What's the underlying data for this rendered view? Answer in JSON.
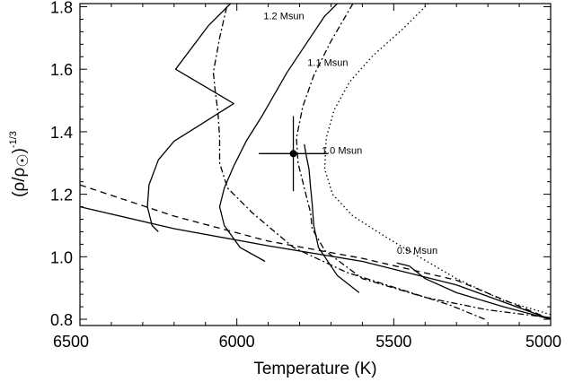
{
  "chart_data": {
    "type": "line",
    "xlabel": "Temperature (K)",
    "ylabel_main": "(ρ/ρ",
    "ylabel_close": ")",
    "ylabel_exp": "-1/3",
    "xlim": [
      6500,
      5000
    ],
    "ylim": [
      0.78,
      1.81
    ],
    "xticks": [
      6500,
      6000,
      5500,
      5000
    ],
    "xtick_labels": [
      "6500",
      "6000",
      "5500",
      "5000"
    ],
    "yticks": [
      0.8,
      1.0,
      1.2,
      1.4,
      1.6,
      1.8
    ],
    "ytick_labels": [
      "0.8",
      "1.0",
      "1.2",
      "1.4",
      "1.6",
      "1.8"
    ],
    "grid": false,
    "annotations": [
      {
        "text": "1.2 Msun",
        "x": 5915,
        "y": 1.76
      },
      {
        "text": "1.1 Msun",
        "x": 5775,
        "y": 1.61
      },
      {
        "text": "1.0 Msun",
        "x": 5730,
        "y": 1.33
      },
      {
        "text": "0.9 Msun",
        "x": 5490,
        "y": 1.01
      }
    ],
    "series": [
      {
        "style": "solid",
        "points": [
          [
            6500,
            1.16
          ],
          [
            6200,
            1.09
          ],
          [
            5900,
            1.035
          ],
          [
            5600,
            0.985
          ],
          [
            5300,
            0.91
          ],
          [
            5000,
            0.8
          ]
        ]
      },
      {
        "style": "dashed",
        "points": [
          [
            6500,
            1.23
          ],
          [
            6200,
            1.13
          ],
          [
            5900,
            1.05
          ],
          [
            5600,
            0.995
          ],
          [
            5300,
            0.925
          ],
          [
            5000,
            0.8
          ]
        ]
      },
      {
        "style": "solid",
        "points": [
          [
            6250,
            1.08
          ],
          [
            6270,
            1.1
          ],
          [
            6285,
            1.16
          ],
          [
            6280,
            1.23
          ],
          [
            6250,
            1.31
          ],
          [
            6200,
            1.37
          ],
          [
            6120,
            1.42
          ],
          [
            6010,
            1.49
          ],
          [
            6195,
            1.6
          ],
          [
            6090,
            1.74
          ],
          [
            6020,
            1.81
          ]
        ]
      },
      {
        "style": "dashdot",
        "points": [
          [
            5210,
            0.8
          ],
          [
            5320,
            0.845
          ],
          [
            5460,
            0.89
          ],
          [
            5650,
            0.95
          ],
          [
            5820,
            1.03
          ],
          [
            5950,
            1.14
          ],
          [
            6030,
            1.22
          ],
          [
            6055,
            1.3
          ],
          [
            6055,
            1.38
          ],
          [
            6060,
            1.46
          ],
          [
            6070,
            1.54
          ],
          [
            6075,
            1.59
          ],
          [
            6055,
            1.7
          ],
          [
            6030,
            1.81
          ]
        ]
      },
      {
        "style": "solid",
        "points": [
          [
            5910,
            0.985
          ],
          [
            5990,
            1.03
          ],
          [
            6040,
            1.1
          ],
          [
            6055,
            1.16
          ],
          [
            6040,
            1.22
          ],
          [
            6010,
            1.29
          ],
          [
            5970,
            1.37
          ],
          [
            5920,
            1.45
          ],
          [
            5880,
            1.52
          ],
          [
            5840,
            1.59
          ],
          [
            5780,
            1.68
          ],
          [
            5720,
            1.77
          ],
          [
            5680,
            1.81
          ]
        ]
      },
      {
        "style": "dashdot",
        "points": [
          [
            5000,
            0.805
          ],
          [
            5200,
            0.83
          ],
          [
            5400,
            0.87
          ],
          [
            5600,
            0.93
          ],
          [
            5720,
            1.02
          ],
          [
            5760,
            1.09
          ],
          [
            5765,
            1.14
          ],
          [
            5780,
            1.2
          ],
          [
            5805,
            1.3
          ],
          [
            5810,
            1.38
          ],
          [
            5790,
            1.48
          ],
          [
            5755,
            1.58
          ],
          [
            5700,
            1.69
          ],
          [
            5630,
            1.81
          ]
        ]
      },
      {
        "style": "solid",
        "points": [
          [
            5610,
            0.885
          ],
          [
            5680,
            0.94
          ],
          [
            5740,
            1.03
          ],
          [
            5755,
            1.1
          ],
          [
            5760,
            1.17
          ],
          [
            5765,
            1.22
          ],
          [
            5770,
            1.28
          ],
          [
            5780,
            1.33
          ],
          [
            5785,
            1.36
          ]
        ]
      },
      {
        "style": "dotted",
        "points": [
          [
            5000,
            0.815
          ],
          [
            5150,
            0.86
          ],
          [
            5300,
            0.93
          ],
          [
            5420,
            1.0
          ],
          [
            5520,
            1.06
          ],
          [
            5630,
            1.13
          ],
          [
            5695,
            1.2
          ],
          [
            5720,
            1.28
          ],
          [
            5715,
            1.38
          ],
          [
            5690,
            1.47
          ],
          [
            5640,
            1.56
          ],
          [
            5570,
            1.64
          ],
          [
            5470,
            1.73
          ],
          [
            5390,
            1.81
          ]
        ]
      },
      {
        "style": "solid",
        "points": [
          [
            5000,
            0.8
          ],
          [
            5150,
            0.84
          ],
          [
            5300,
            0.885
          ],
          [
            5400,
            0.93
          ],
          [
            5450,
            0.97
          ],
          [
            5490,
            0.98
          ]
        ]
      }
    ],
    "data_point": {
      "x": 5820,
      "y": 1.33,
      "xerr": 110,
      "yerr": 0.12
    }
  }
}
